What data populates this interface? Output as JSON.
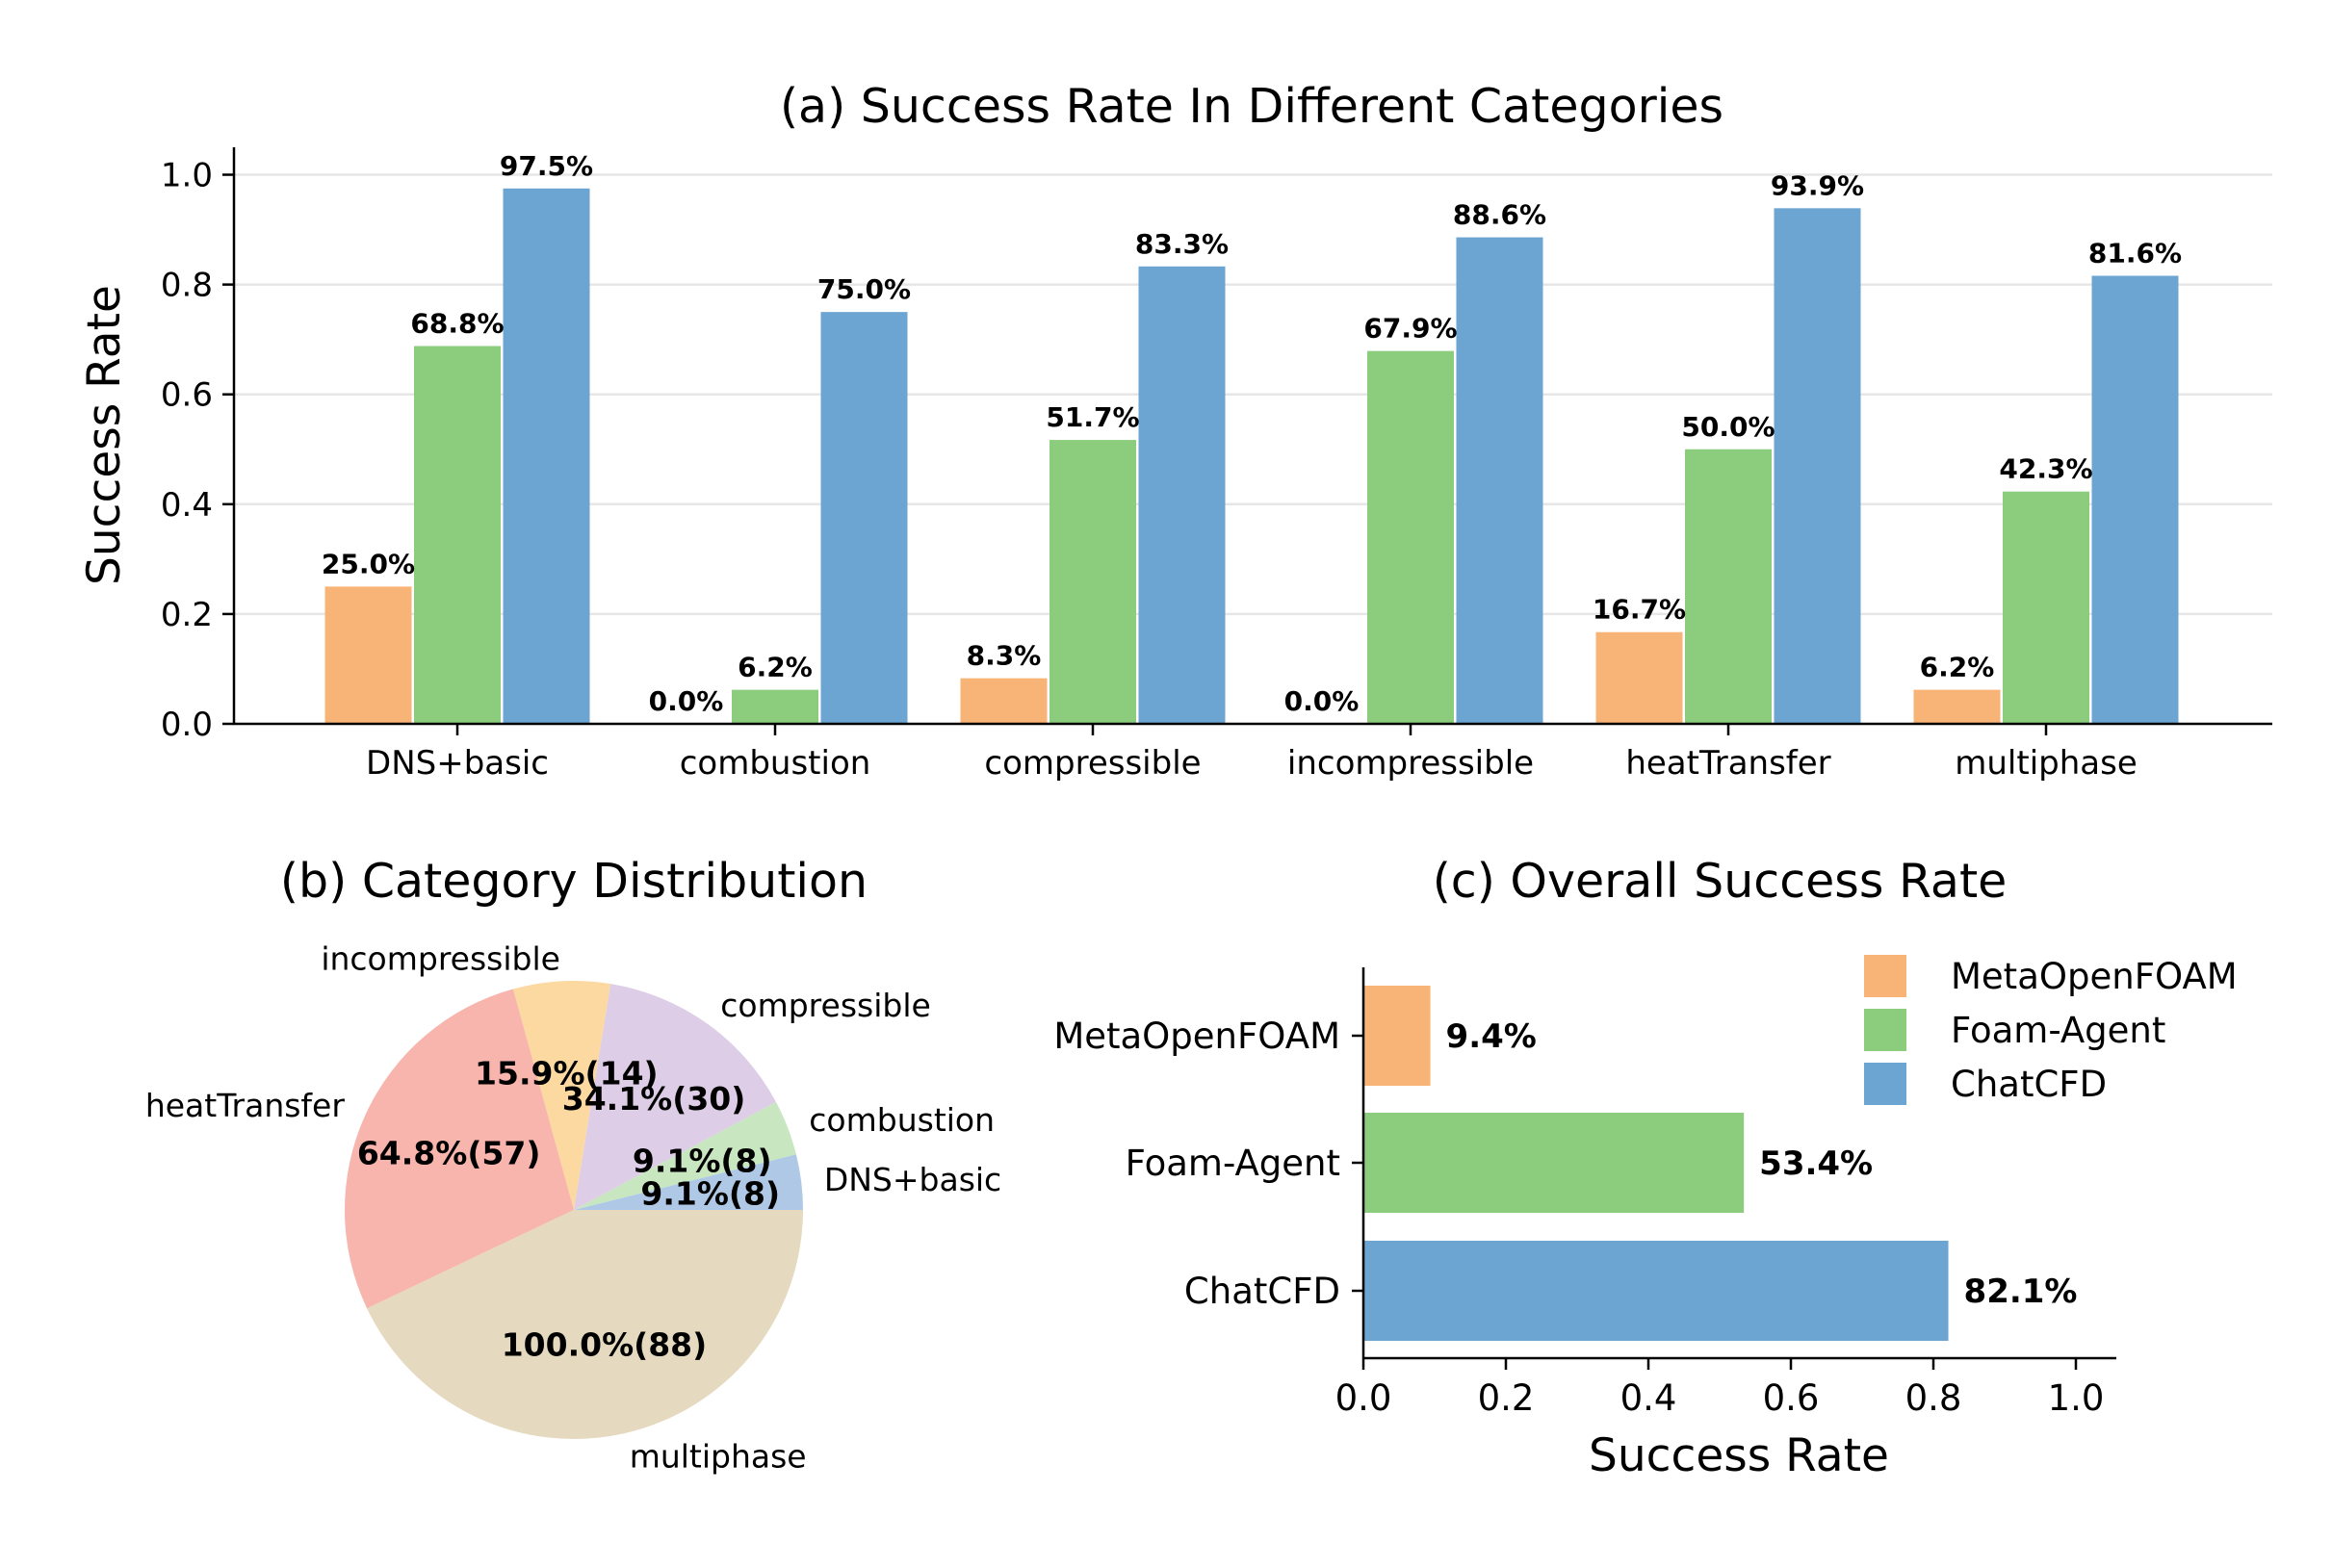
{
  "colors": {
    "MetaOpenFOAM": "#f8b377",
    "Foam-Agent": "#8ccc7d",
    "ChatCFD": "#6da5d2"
  },
  "chart_data": [
    {
      "id": "a",
      "type": "bar",
      "title": "(a) Success Rate In Different Categories",
      "xlabel": "",
      "ylabel": "Success Rate",
      "ylim": [
        0,
        1.05
      ],
      "yticks": [
        "0.0",
        "0.2",
        "0.4",
        "0.6",
        "0.8",
        "1.0"
      ],
      "grid": true,
      "categories": [
        "DNS+basic",
        "combustion",
        "compressible",
        "incompressible",
        "heatTransfer",
        "multiphase"
      ],
      "series": [
        {
          "name": "MetaOpenFOAM",
          "values": [
            0.25,
            0.0,
            0.083,
            0.0,
            0.167,
            0.062
          ],
          "labels": [
            "25.0%",
            "0.0%",
            "8.3%",
            "0.0%",
            "16.7%",
            "6.2%"
          ]
        },
        {
          "name": "Foam-Agent",
          "values": [
            0.688,
            0.062,
            0.517,
            0.679,
            0.5,
            0.423
          ],
          "labels": [
            "68.8%",
            "6.2%",
            "51.7%",
            "67.9%",
            "50.0%",
            "42.3%"
          ]
        },
        {
          "name": "ChatCFD",
          "values": [
            0.975,
            0.75,
            0.833,
            0.886,
            0.939,
            0.816
          ],
          "labels": [
            "97.5%",
            "75.0%",
            "83.3%",
            "88.6%",
            "93.9%",
            "81.6%"
          ]
        }
      ]
    },
    {
      "id": "b",
      "type": "pie",
      "title": "(b) Category Distribution",
      "slices": [
        {
          "label": "DNS+basic",
          "value": 8,
          "pct_label": "9.1%(8)",
          "color": "#aec8e6"
        },
        {
          "label": "combustion",
          "value": 8,
          "pct_label": "9.1%(8)",
          "color": "#c8e6c0"
        },
        {
          "label": "compressible",
          "value": 30,
          "pct_label": "34.1%(30)",
          "color": "#decde6"
        },
        {
          "label": "incompressible",
          "value": 14,
          "pct_label": "15.9%(14)",
          "color": "#fbd9a0"
        },
        {
          "label": "heatTransfer",
          "value": 57,
          "pct_label": "64.8%(57)",
          "color": "#f8b5ae"
        },
        {
          "label": "multiphase",
          "value": 88,
          "pct_label": "100.0%(88)",
          "color": "#e5dac0"
        }
      ]
    },
    {
      "id": "c",
      "type": "bar",
      "orientation": "horizontal",
      "title": "(c) Overall Success Rate",
      "xlabel": "Success Rate",
      "ylabel": "",
      "xlim": [
        0,
        1.05
      ],
      "xticks": [
        "0.0",
        "0.2",
        "0.4",
        "0.6",
        "0.8",
        "1.0"
      ],
      "categories": [
        "MetaOpenFOAM",
        "Foam-Agent",
        "ChatCFD"
      ],
      "values": [
        0.094,
        0.534,
        0.821
      ],
      "labels": [
        "9.4%",
        "53.4%",
        "82.1%"
      ],
      "legend": {
        "location": "top-right",
        "entries": [
          "MetaOpenFOAM",
          "Foam-Agent",
          "ChatCFD"
        ]
      }
    }
  ]
}
